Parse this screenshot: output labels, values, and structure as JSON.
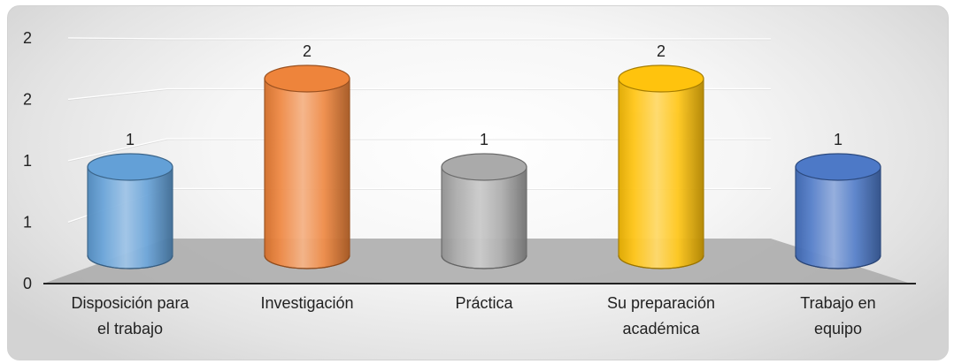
{
  "chart_data": {
    "type": "bar",
    "style": "3d-cylinder",
    "title": "",
    "xlabel": "",
    "ylabel": "",
    "categories": [
      [
        "Disposición para",
        "el trabajo"
      ],
      [
        "Investigación"
      ],
      [
        "Práctica"
      ],
      [
        "Su preparación",
        "académica"
      ],
      [
        "Trabajo en",
        "equipo"
      ]
    ],
    "values": [
      1,
      2,
      1,
      2,
      1
    ],
    "data_labels": [
      "1",
      "2",
      "1",
      "2",
      "1"
    ],
    "y_tick_labels": [
      "0",
      "1",
      "1",
      "2",
      "2"
    ],
    "ylim": [
      0,
      2
    ],
    "grid": true,
    "legend": "none",
    "colors": [
      "#5b9bd5",
      "#ed7d31",
      "#a5a5a5",
      "#ffc000",
      "#4472c4"
    ]
  }
}
